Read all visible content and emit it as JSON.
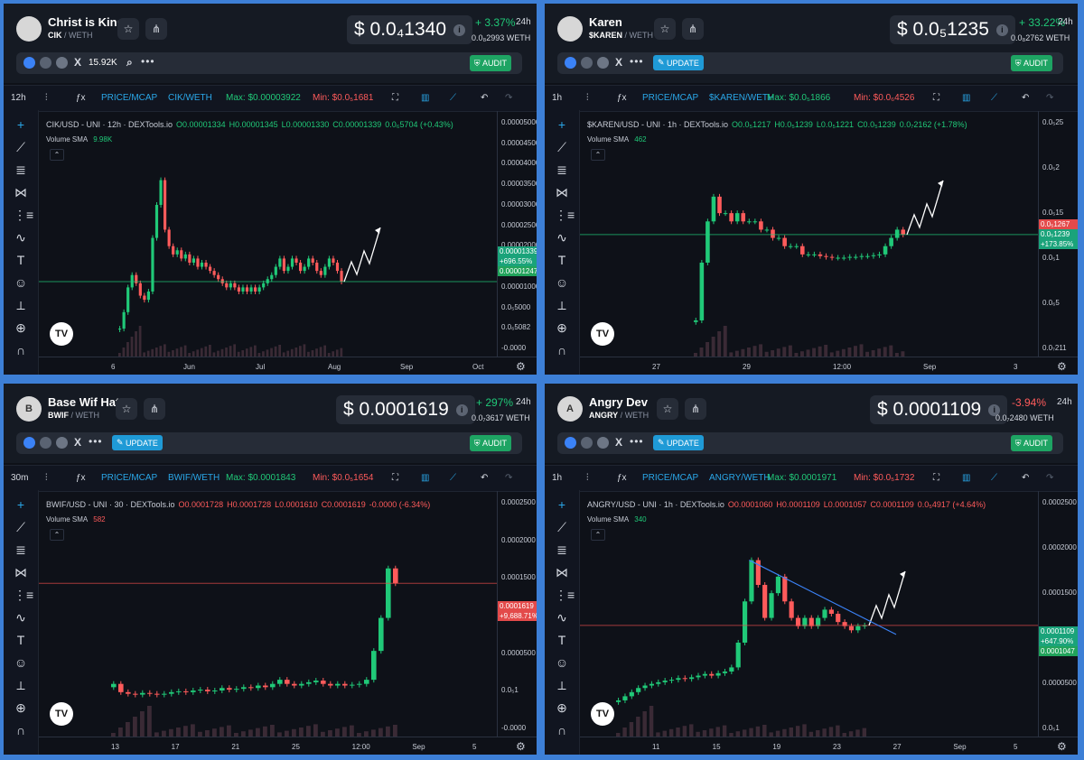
{
  "colors": {
    "up": "#20c978",
    "down": "#ff5b5b",
    "accent": "#1f9ad6",
    "audit": "#1ea463",
    "bg": "#0e1118"
  },
  "panels": [
    {
      "avatar": "",
      "name": "Christ is King",
      "symbol": "CIK",
      "quote": "WETH",
      "price": "$ 0.0₄1340",
      "change": "+ 3.37%",
      "change_dir": "up",
      "period": "24h",
      "weth": "0.0₈2993  WETH",
      "links": [
        "globe-icon",
        "web-icon",
        "telegram-icon",
        "x-icon"
      ],
      "holders": "15.92K",
      "update": "",
      "audit": "AUDIT",
      "toolbar": {
        "tf": "12h",
        "price_mcap": "PRICE/MCAP",
        "pair": "CIK/WETH",
        "max": "Max: $0.00003922",
        "min": "Min: $0.0₅1681"
      },
      "ohlc": {
        "title": "CIK/USD - UNI · 12h · DEXTools.io",
        "o": "O0.00001334",
        "h": "H0.00001345",
        "l": "L0.00001330",
        "c": "C0.00001339",
        "chg": "0.0₆5704 (+0.43%)"
      },
      "volume": {
        "label": "Volume SMA",
        "value": "9.98K"
      },
      "y_ticks": [
        "0.00005000",
        "0.00004500",
        "0.00004000",
        "0.00003500",
        "0.00003000",
        "0.00002500",
        "0.00002000",
        "0.00001500",
        "0.00001000",
        "0.0₅5000",
        "0.0₆5082",
        "-0.0000"
      ],
      "x_ticks": [
        "6",
        "Jun",
        "Jul",
        "Aug",
        "Sep",
        "Oct"
      ],
      "tags": [
        {
          "t": "0.00001339",
          "c": "gr"
        },
        {
          "t": "+696.55%",
          "c": "gr"
        },
        {
          "t": "0.00001247",
          "c": "gr2"
        }
      ],
      "chart_data": {
        "type": "candlestick",
        "x_ticks": [
          "6",
          "Jun",
          "Jul",
          "Aug",
          "Sep",
          "Oct"
        ],
        "ylim": [
          0,
          5e-05
        ],
        "close": [
          2e-06,
          6e-06,
          1.2e-05,
          1.5e-05,
          1.3e-05,
          1e-05,
          9e-06,
          1.1e-05,
          2.4e-05,
          3.2e-05,
          3.8e-05,
          2.6e-05,
          2.2e-05,
          2e-05,
          2.1e-05,
          1.9e-05,
          2e-05,
          1.8e-05,
          1.9e-05,
          1.7e-05,
          1.8e-05,
          1.7e-05,
          1.6e-05,
          1.5e-05,
          1.4e-05,
          1.3e-05,
          1.2e-05,
          1.3e-05,
          1.2e-05,
          1.1e-05,
          1.2e-05,
          1.1e-05,
          1.2e-05,
          1.1e-05,
          1.2e-05,
          1.3e-05,
          1.4e-05,
          1.5e-05,
          1.7e-05,
          1.9e-05,
          1.6e-05,
          1.7e-05,
          1.9e-05,
          1.8e-05,
          1.6e-05,
          1.7e-05,
          1.9e-05,
          1.8e-05,
          1.6e-05,
          1.5e-05,
          1.7e-05,
          1.9e-05,
          1.8e-05,
          1.6e-05,
          1.34e-05
        ]
      }
    },
    {
      "avatar": "",
      "name": "Karen",
      "symbol": "$KAREN",
      "quote": "WETH",
      "price": "$ 0.0₅1235",
      "change": "+ 33.22%",
      "change_dir": "up",
      "period": "24h",
      "weth": "0.0₈2762  WETH",
      "links": [
        "globe-icon",
        "web-icon",
        "telegram-icon",
        "x-icon"
      ],
      "holders": "",
      "update": "UPDATE",
      "audit": "AUDIT",
      "toolbar": {
        "tf": "1h",
        "price_mcap": "PRICE/MCAP",
        "pair": "$KAREN/WETH",
        "max": "Max: $0.0₅1866",
        "min": "Min: $0.0₆4526"
      },
      "ohlc": {
        "title": "$KAREN/USD - UNI · 1h · DEXTools.io",
        "o": "O0.0₅1217",
        "h": "H0.0₅1239",
        "l": "L0.0₅1221",
        "c": "C0.0₅1239",
        "chg": "0.0₇2162 (+1.78%)"
      },
      "volume": {
        "label": "Volume SMA",
        "value": "462"
      },
      "y_ticks": [
        "0.0₅25",
        "0.0₅2",
        "0.0₅15",
        "0.0₅1",
        "0.0₆5",
        "0.0₇211"
      ],
      "x_ticks": [
        "27",
        "29",
        "12:00",
        "Sep",
        "3"
      ],
      "tags": [
        {
          "t": "0.0₅1267",
          "c": "rd"
        },
        {
          "t": "0.0₅1239",
          "c": "gr"
        },
        {
          "t": "+173.85%",
          "c": "gr"
        }
      ],
      "chart_data": {
        "type": "candlestick",
        "x_ticks": [
          "27",
          "29",
          "12:00",
          "Sep",
          "3"
        ],
        "ylim": [
          0,
          2.5e-06
        ],
        "close": [
          2e-07,
          9e-07,
          1.4e-06,
          1.7e-06,
          1.5e-06,
          1.5e-06,
          1.4e-06,
          1.5e-06,
          1.4e-06,
          1.4e-06,
          1.4e-06,
          1.3e-06,
          1.3e-06,
          1.2e-06,
          1.2e-06,
          1.1e-06,
          1.1e-06,
          1.1e-06,
          1e-06,
          1e-06,
          1e-06,
          9.8e-07,
          9.7e-07,
          9.6e-07,
          9.6e-07,
          9.6e-07,
          9.7e-07,
          9.7e-07,
          9.8e-07,
          9.8e-07,
          9.9e-07,
          1e-06,
          1.1e-06,
          1.2e-06,
          1.3e-06,
          1.24e-06
        ]
      }
    },
    {
      "avatar": "B",
      "name": "Base Wif Hat",
      "symbol": "BWIF",
      "quote": "WETH",
      "price": "$ 0.0001619",
      "change": "+ 297%",
      "change_dir": "up",
      "period": "24h",
      "weth": "0.0₇3617  WETH",
      "links": [
        "globe-icon",
        "web-icon",
        "telegram-icon",
        "x-icon"
      ],
      "holders": "",
      "update": "UPDATE",
      "audit": "AUDIT",
      "toolbar": {
        "tf": "30m",
        "price_mcap": "PRICE/MCAP",
        "pair": "BWIF/WETH",
        "max": "Max: $0.0001843",
        "min": "Min: $0.0₅1654"
      },
      "ohlc": {
        "title": "BWIF/USD - UNI · 30 · DEXTools.io",
        "o": "O0.0001728",
        "h": "H0.0001728",
        "l": "L0.0001610",
        "c": "C0.0001619",
        "chg": "-0.0000 (-6.34%)"
      },
      "volume": {
        "label": "Volume SMA",
        "value": "582"
      },
      "y_ticks": [
        "0.0002500",
        "0.0002000",
        "0.0001500",
        "0.0001000",
        "0.0000500",
        "0.0₅1",
        "-0.0000"
      ],
      "x_ticks": [
        "13",
        "17",
        "21",
        "25",
        "12:00",
        "Sep",
        "5"
      ],
      "tags": [
        {
          "t": "0.0001619",
          "c": "rd"
        },
        {
          "t": "+9,688.71%",
          "c": "rd"
        }
      ],
      "chart_data": {
        "type": "candlestick",
        "x_ticks": [
          "13",
          "17",
          "21",
          "25",
          "12:00",
          "Sep",
          "5"
        ],
        "ylim": [
          0,
          0.00025
        ],
        "close": [
          4e-05,
          3e-05,
          2.8e-05,
          2.7e-05,
          2.9e-05,
          2.8e-05,
          2.7e-05,
          2.8e-05,
          3e-05,
          3.1e-05,
          3e-05,
          3.2e-05,
          3.3e-05,
          3.1e-05,
          3.2e-05,
          3.5e-05,
          3.3e-05,
          3.4e-05,
          3.6e-05,
          3.5e-05,
          3.8e-05,
          3.6e-05,
          4e-05,
          4.5e-05,
          4e-05,
          3.8e-05,
          4e-05,
          4.2e-05,
          4.4e-05,
          4e-05,
          3.8e-05,
          4e-05,
          3.8e-05,
          3.9e-05,
          4e-05,
          4.5e-05,
          8e-05,
          0.00012,
          0.00018,
          0.0001619
        ]
      }
    },
    {
      "avatar": "A",
      "name": "Angry Dev",
      "symbol": "ANGRY",
      "quote": "WETH",
      "price": "$ 0.0001109",
      "change": "-3.94%",
      "change_dir": "down",
      "period": "24h",
      "weth": "0.0₇2480  WETH",
      "links": [
        "globe-icon",
        "web-icon",
        "telegram-icon",
        "x-icon"
      ],
      "holders": "",
      "update": "UPDATE",
      "audit": "AUDIT",
      "toolbar": {
        "tf": "1h",
        "price_mcap": "PRICE/MCAP",
        "pair": "ANGRY/WETH",
        "max": "Max: $0.0001971",
        "min": "Min: $0.0₅1732"
      },
      "ohlc": {
        "title": "ANGRY/USD - UNI · 1h · DEXTools.io",
        "o": "O0.0001060",
        "h": "H0.0001109",
        "l": "L0.0001057",
        "c": "C0.0001109",
        "chg": "0.0₅4917 (+4.64%)"
      },
      "volume": {
        "label": "Volume SMA",
        "value": "340"
      },
      "y_ticks": [
        "0.0002500",
        "0.0002000",
        "0.0001500",
        "0.0001000",
        "0.0000500",
        "0.0₅1"
      ],
      "x_ticks": [
        "11",
        "15",
        "19",
        "23",
        "27",
        "Sep",
        "5"
      ],
      "tags": [
        {
          "t": "0.0001109",
          "c": "gr"
        },
        {
          "t": "+647.90%",
          "c": "gr"
        },
        {
          "t": "0.0001047",
          "c": "gr2"
        }
      ],
      "chart_data": {
        "type": "candlestick",
        "x_ticks": [
          "11",
          "15",
          "19",
          "23",
          "27",
          "Sep",
          "5"
        ],
        "ylim": [
          0,
          0.00025
        ],
        "close": [
          2e-05,
          2.5e-05,
          3e-05,
          3.5e-05,
          3.8e-05,
          4e-05,
          4.2e-05,
          4.4e-05,
          4.5e-05,
          4.7e-05,
          4.6e-05,
          4.8e-05,
          5e-05,
          5.2e-05,
          5e-05,
          5.3e-05,
          5.5e-05,
          6e-05,
          9e-05,
          0.00014,
          0.00019,
          0.00016,
          0.00012,
          0.00015,
          0.00017,
          0.00014,
          0.00012,
          0.00011,
          0.00012,
          0.00011,
          0.00012,
          0.00013,
          0.000125,
          0.000115,
          0.00011,
          0.000105,
          0.00011,
          0.0001109
        ]
      }
    }
  ]
}
